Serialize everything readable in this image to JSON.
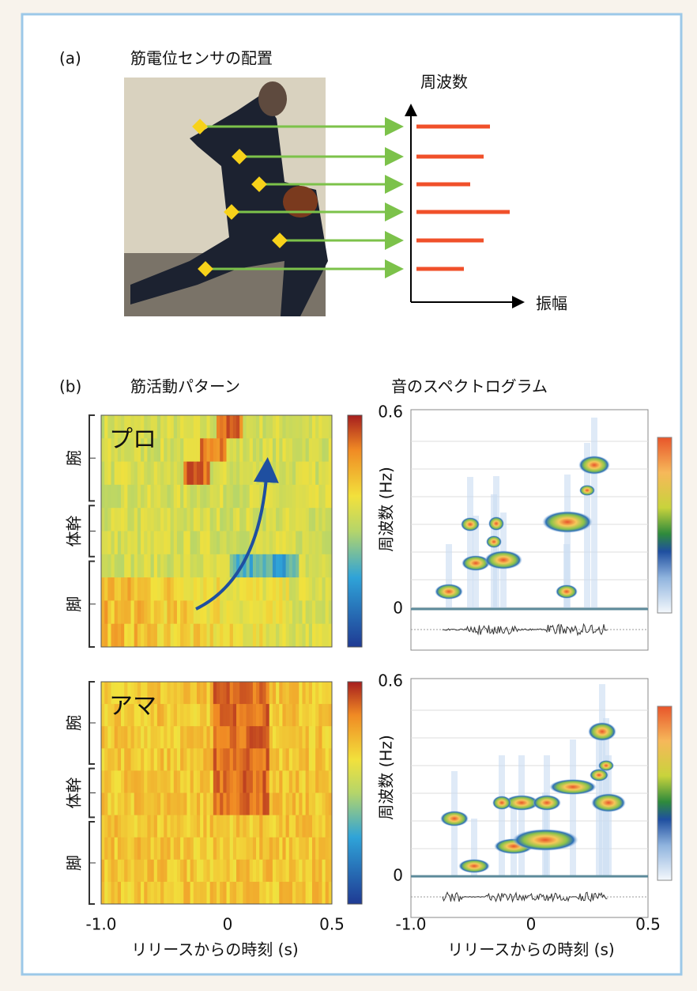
{
  "panel_a": {
    "label": "(a)",
    "title": "筋電位センサの配置",
    "y_axis": "周波数",
    "x_axis": "振幅"
  },
  "panel_b": {
    "label": "(b)",
    "left_title": "筋活動パターン",
    "right_title": "音のスペクトログラム",
    "heatmaps": [
      {
        "label": "プロ",
        "rows": [
          "腕",
          "体幹",
          "脚"
        ]
      },
      {
        "label": "アマ",
        "rows": [
          "腕",
          "体幹",
          "脚"
        ]
      }
    ],
    "spectrograms": [
      {
        "y_label": "周波数 (Hz)",
        "y_ticks": [
          "0.6",
          "0"
        ]
      },
      {
        "y_label": "周波数 (Hz)",
        "y_ticks": [
          "0.6",
          "0"
        ]
      }
    ],
    "left_axis": {
      "ticks": [
        "-1.0",
        "0",
        "0.5"
      ],
      "label": "リリースからの時刻 (s)"
    },
    "right_axis": {
      "ticks": [
        "-1.0",
        "0",
        "0.5"
      ],
      "label": "リリースからの時刻 (s)"
    }
  }
}
